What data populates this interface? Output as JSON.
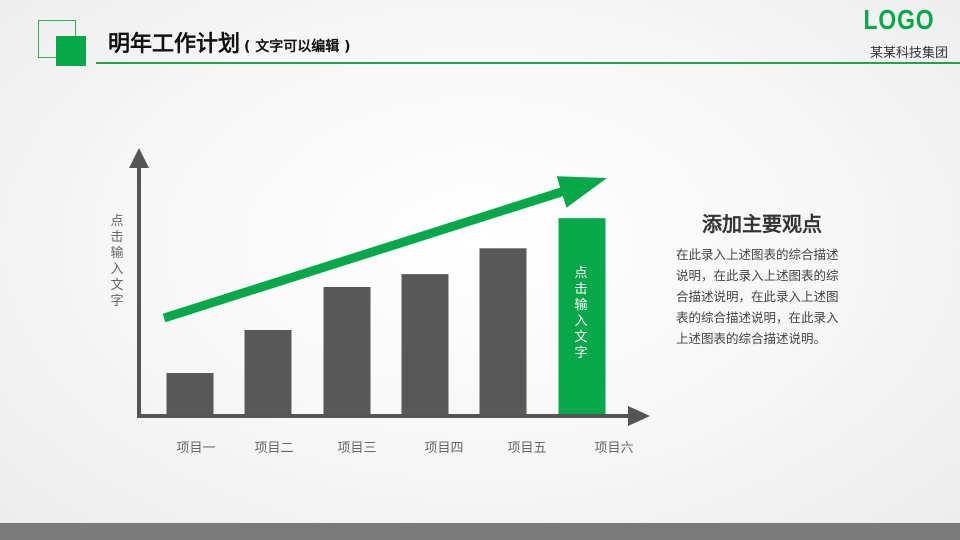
{
  "header": {
    "title": "明年工作计划",
    "subtitle": "( 文字可以编辑 )",
    "logo": "LOGO",
    "company": "某某科技集团"
  },
  "colors": {
    "accent": "#07a84a",
    "bar": "#585858",
    "axis": "#555555"
  },
  "chart_data": {
    "type": "bar",
    "categories": [
      "项目一",
      "项目二",
      "项目三",
      "项目四",
      "项目五",
      "项目六"
    ],
    "values": [
      1,
      2,
      3,
      3.3,
      3.9,
      4.6
    ],
    "highlight_index": 5,
    "highlight_label": "点击输入文字",
    "ylabel": "点击输入文字",
    "trend_arrow": true
  },
  "panel": {
    "title": "添加主要观点",
    "text": "在此录入上述图表的综合描述说明，在此录入上述图表的综合描述说明，在此录入上述图表的综合描述说明，在此录入上述图表的综合描述说明。"
  }
}
